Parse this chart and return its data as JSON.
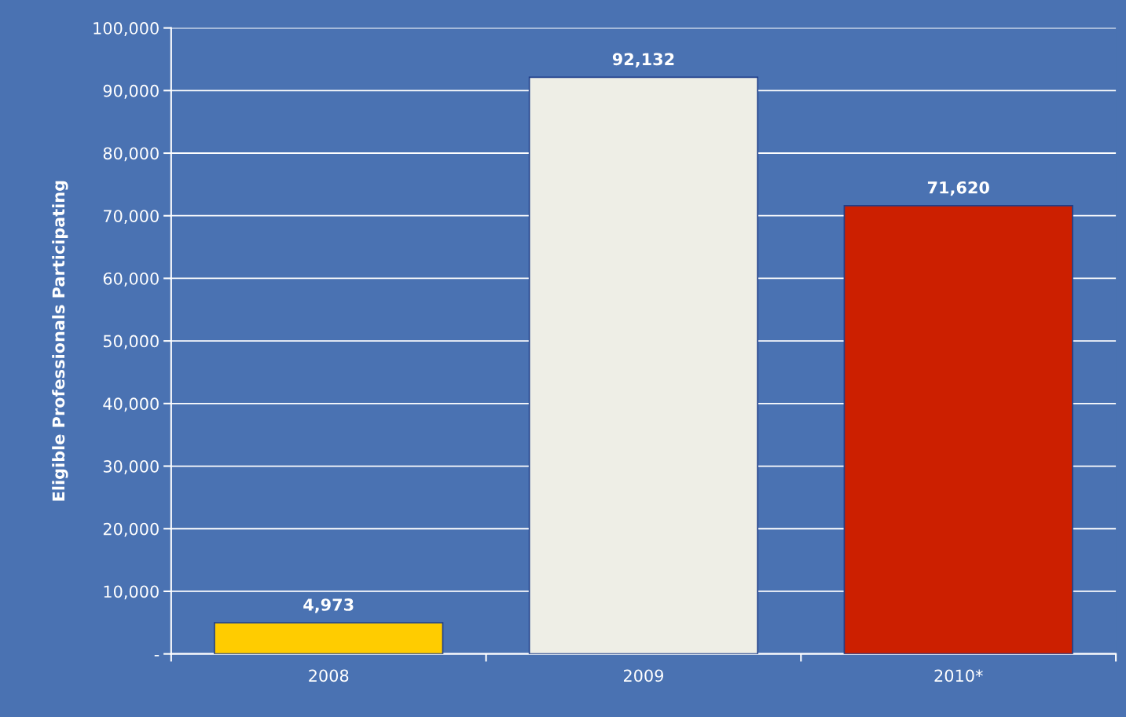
{
  "chart_data": {
    "type": "bar",
    "ylabel": "Eligible Professionals Participating",
    "categories": [
      "2008",
      "2009",
      "2010*"
    ],
    "values": [
      4973,
      92132,
      71620
    ],
    "colors": [
      "#ffcc00",
      "#eeeee6",
      "#cc1f00"
    ],
    "value_labels": [
      "4,973",
      "92,132",
      "71,620"
    ],
    "ylim": [
      0,
      100000
    ],
    "yticks": [
      {
        "value": 0,
        "label": "-"
      },
      {
        "value": 10000,
        "label": "10,000"
      },
      {
        "value": 20000,
        "label": "20,000"
      },
      {
        "value": 30000,
        "label": "30,000"
      },
      {
        "value": 40000,
        "label": "40,000"
      },
      {
        "value": 50000,
        "label": "50,000"
      },
      {
        "value": 60000,
        "label": "60,000"
      },
      {
        "value": 70000,
        "label": "70,000"
      },
      {
        "value": 80000,
        "label": "80,000"
      },
      {
        "value": 90000,
        "label": "90,000"
      },
      {
        "value": 100000,
        "label": "100,000"
      }
    ],
    "grid": "y",
    "legend": false
  }
}
